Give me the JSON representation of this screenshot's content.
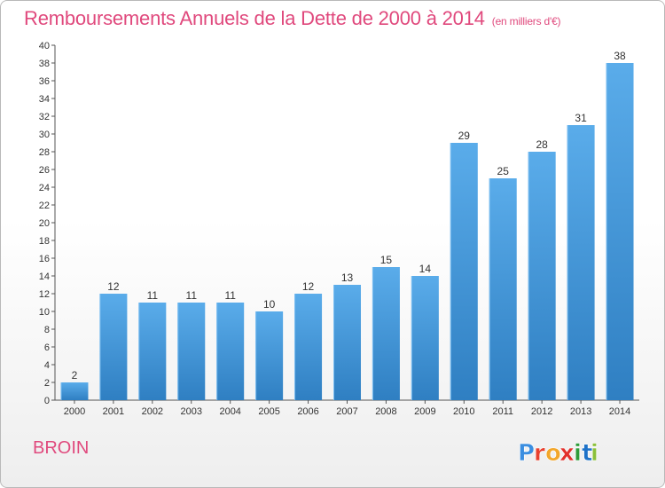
{
  "title": "Remboursements Annuels de la Dette de 2000 à 2014",
  "unit_note": "(en milliers d'€)",
  "commune": "BROIN",
  "brand": {
    "letters": [
      "P",
      "r",
      "o",
      "x",
      "i",
      "t",
      "i"
    ],
    "colors": [
      "#3b8ee0",
      "#e8402e",
      "#f2a62a",
      "#e2312c",
      "#2f9c3a",
      "#1e72c8",
      "#8bc03a"
    ]
  },
  "colors": {
    "accent": "#e0497d",
    "bar_light": "#5aacea",
    "bar_dark": "#2f7fc2",
    "axis": "#555555"
  },
  "chart_data": {
    "type": "bar",
    "title": "Remboursements Annuels de la Dette de 2000 à 2014",
    "xlabel": "",
    "ylabel": "",
    "categories": [
      "2000",
      "2001",
      "2002",
      "2003",
      "2004",
      "2005",
      "2006",
      "2007",
      "2008",
      "2009",
      "2010",
      "2011",
      "2012",
      "2013",
      "2014"
    ],
    "values": [
      2,
      12,
      11,
      11,
      11,
      10,
      12,
      13,
      15,
      14,
      29,
      25,
      28,
      31,
      38
    ],
    "ylim": [
      0,
      40
    ],
    "yticks": [
      0,
      2,
      4,
      6,
      8,
      10,
      12,
      14,
      16,
      18,
      20,
      22,
      24,
      26,
      28,
      30,
      32,
      34,
      36,
      38,
      40
    ],
    "grid": false,
    "data_labels": true
  }
}
